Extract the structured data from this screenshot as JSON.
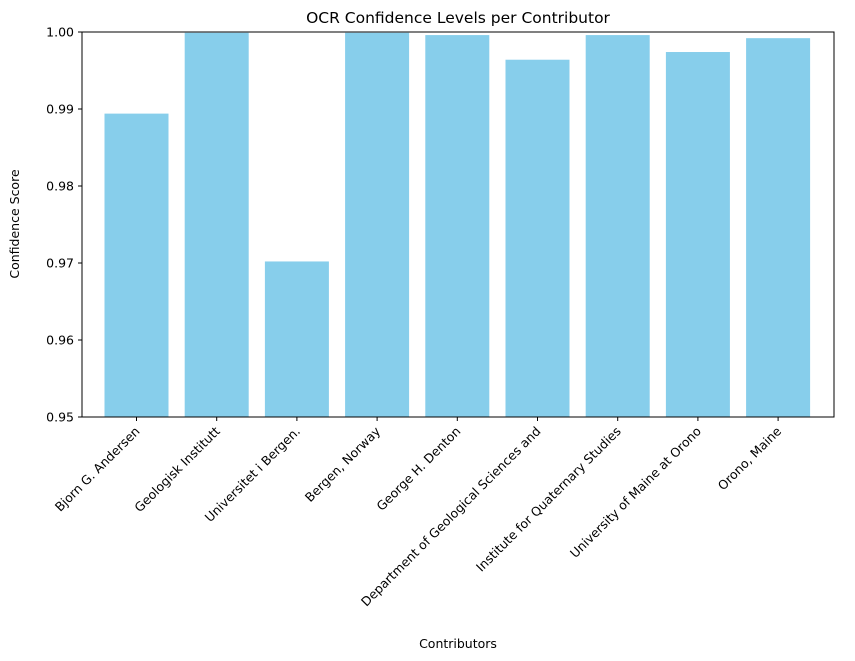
{
  "chart_data": {
    "type": "bar",
    "title": "OCR Confidence Levels per Contributor",
    "xlabel": "Contributors",
    "ylabel": "Confidence Score",
    "categories": [
      "Bjorn G. Andersen",
      "Geologisk Institutt",
      "Universitet i Bergen.",
      "Bergen, Norway",
      "George H. Denton",
      "Department of Geological Sciences and",
      "Institute for Quaternary Studies",
      "University of Maine at Orono",
      "Orono, Maine"
    ],
    "values": [
      0.9894,
      0.9999,
      0.9702,
      0.9999,
      0.9996,
      0.9964,
      0.9996,
      0.9974,
      0.9992
    ],
    "ylim": [
      0.95,
      1.0
    ],
    "yticks": [
      "0.95",
      "0.96",
      "0.97",
      "0.98",
      "0.99",
      "1.00"
    ],
    "bar_color": "#87ceeb",
    "grid": false,
    "legend": "none"
  }
}
